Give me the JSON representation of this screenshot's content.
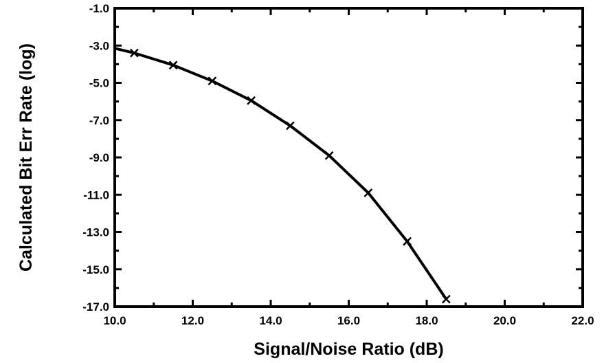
{
  "chart_data": {
    "type": "line",
    "title": "",
    "xlabel": "Signal/Noise Ratio (dB)",
    "ylabel": "Calculated Bit Err Rate (log)",
    "xlim": [
      10.0,
      22.0
    ],
    "ylim": [
      -17.0,
      -1.0
    ],
    "x_ticks": [
      "10.0",
      "12.0",
      "14.0",
      "16.0",
      "18.0",
      "20.0",
      "22.0"
    ],
    "y_ticks": [
      "-1.0",
      "-3.0",
      "-5.0",
      "-7.0",
      "-9.0",
      "-11.0",
      "-13.0",
      "-15.0",
      "-17.0"
    ],
    "grid": false,
    "legend": "none",
    "series": [
      {
        "line_points": {
          "x": [
            10.0,
            10.5,
            11.5,
            12.5,
            13.5,
            14.5,
            15.5,
            16.5,
            17.5,
            18.5
          ],
          "y": [
            -3.15,
            -3.4,
            -4.05,
            -4.9,
            -5.95,
            -7.3,
            -8.9,
            -10.9,
            -13.5,
            -16.6
          ]
        },
        "marked_points": {
          "x": [
            10.5,
            11.5,
            12.5,
            13.5,
            14.5,
            15.5,
            16.5,
            17.5,
            18.5
          ],
          "y": [
            -3.4,
            -4.05,
            -4.9,
            -5.95,
            -7.3,
            -8.9,
            -10.9,
            -13.5,
            -16.6
          ]
        },
        "color": "#000000",
        "marker": "x-mark"
      }
    ]
  }
}
